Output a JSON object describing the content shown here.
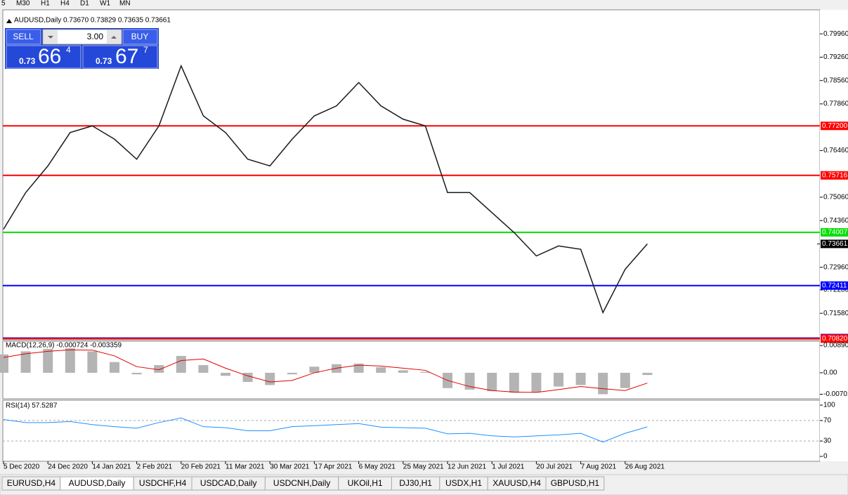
{
  "toolbar": [
    "5",
    "M30",
    "H1",
    "H4",
    "D1",
    "W1",
    "MN"
  ],
  "trade_panel": {
    "sell": "SELL",
    "buy": "BUY",
    "lots": "3.00",
    "sell_price": {
      "big": "0.73",
      "main": "66",
      "small": "4"
    },
    "buy_price": {
      "big": "0.73",
      "main": "67",
      "small": "7"
    }
  },
  "tabs": [
    "EURUSD,H4",
    "AUDUSD,Daily",
    "USDCHF,H4",
    "USDCAD,Daily",
    "USDCNH,Daily",
    "UKOil,H1",
    "DJ30,H1",
    "USDX,H1",
    "XAUUSD,H4",
    "GBPUSD,H1"
  ],
  "active_tab": 1,
  "chart_data": [
    {
      "type": "line",
      "title": "AUDUSD,Daily  0.73670 0.73829 0.73635 0.73661",
      "categories": [
        "5 Dec 2020",
        null,
        "24 Dec 2020",
        null,
        "14 Jan 2021",
        null,
        "2 Feb 2021",
        null,
        "20 Feb 2021",
        null,
        "11 Mar 2021",
        null,
        "30 Mar 2021",
        null,
        "17 Apr 2021",
        null,
        "6 May 2021",
        null,
        "25 May 2021",
        null,
        "12 Jun 2021",
        null,
        "1 Jul 2021",
        null,
        "20 Jul 2021",
        null,
        "7 Aug 2021",
        null,
        "26 Aug 2021",
        null
      ],
      "values": [
        0.741,
        0.752,
        0.76,
        0.77,
        0.772,
        0.768,
        0.762,
        0.772,
        0.79,
        0.775,
        0.77,
        0.762,
        0.76,
        0.768,
        0.775,
        0.778,
        0.785,
        0.778,
        0.774,
        0.772,
        0.752,
        0.752,
        0.746,
        0.74,
        0.733,
        0.736,
        0.735,
        0.716,
        0.729,
        0.73661
      ],
      "color": "#1a1a1a",
      "ylim": [
        0.70784,
        0.8068
      ],
      "yticks": [
        {
          "value": 0.7996,
          "label": "0.79960"
        },
        {
          "value": 0.7926,
          "label": "0.79260"
        },
        {
          "value": 0.7856,
          "label": "0.78560"
        },
        {
          "value": 0.7786,
          "label": "0.77860"
        },
        {
          "value": 0.7646,
          "label": "0.76460"
        },
        {
          "value": 0.7506,
          "label": "0.75060"
        },
        {
          "value": 0.7436,
          "label": "0.74360"
        },
        {
          "value": 0.7296,
          "label": "0.72960"
        },
        {
          "value": 0.7228,
          "label": "0.72280"
        },
        {
          "value": 0.7158,
          "label": "0.71580"
        }
      ],
      "levels": [
        {
          "value": 0.772,
          "label": "0.77200",
          "color": "#ff0000"
        },
        {
          "value": 0.75716,
          "label": "0.75716",
          "color": "#ff0000"
        },
        {
          "value": 0.74007,
          "label": "0.74007",
          "color": "#00e000"
        },
        {
          "value": 0.72411,
          "label": "0.72411",
          "color": "#0000ff"
        },
        {
          "value": 0.70836,
          "label": "0.70836",
          "color": "#0000ff"
        },
        {
          "value": 0.7082,
          "label": "0.70820",
          "color": "#ff0000"
        }
      ],
      "last_price": {
        "value": 0.73661,
        "label": "0.73661"
      },
      "grid": false
    },
    {
      "type": "macd",
      "title": "MACD(12,26,9) -0.000724 -0.003359",
      "values": [
        0.006,
        0.007,
        0.0078,
        0.008,
        0.007,
        0.0035,
        -0.0005,
        0.0025,
        0.0055,
        0.0025,
        -0.001,
        -0.003,
        -0.004,
        -0.0005,
        0.002,
        0.0028,
        0.003,
        0.0018,
        0.0008,
        0.0003,
        -0.005,
        -0.0055,
        -0.006,
        -0.0065,
        -0.0063,
        -0.0045,
        -0.004,
        -0.007,
        -0.005,
        -0.000724
      ],
      "signal": [
        0.005,
        0.0062,
        0.007,
        0.0075,
        0.0074,
        0.0055,
        0.002,
        0.001,
        0.004,
        0.0045,
        0.0015,
        -0.001,
        -0.003,
        -0.0025,
        0.0,
        0.0015,
        0.0025,
        0.0022,
        0.0015,
        0.0008,
        -0.0025,
        -0.0045,
        -0.0058,
        -0.0063,
        -0.0064,
        -0.0055,
        -0.0045,
        -0.0052,
        -0.0058,
        -0.003359
      ],
      "color": "#b4b4b4",
      "signal_color": "#e00000",
      "ylim": [
        -0.0085,
        0.0103
      ],
      "yticks": [
        0.008904,
        {
          "value": 0,
          "label": "0.00"
        },
        -0.00701
      ]
    },
    {
      "type": "rsi",
      "title": "RSI(14) 57.5287",
      "values": [
        72,
        66,
        66,
        68,
        62,
        58,
        55,
        66,
        75,
        58,
        56,
        50,
        50,
        58,
        60,
        62,
        64,
        57,
        56,
        55,
        44,
        45,
        40,
        38,
        40,
        42,
        45,
        28,
        45,
        57.5287
      ],
      "color": "#1e90ff",
      "ylim": [
        -9.6,
        109.6
      ],
      "yticks": [
        0,
        30,
        70,
        100
      ],
      "levels": [
        30,
        70
      ]
    }
  ]
}
